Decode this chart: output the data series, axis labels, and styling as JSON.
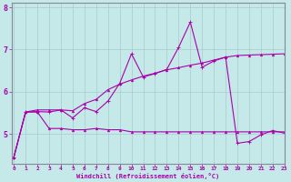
{
  "xlabel": "Windchill (Refroidissement éolien,°C)",
  "background_color": "#c5e8e8",
  "grid_color": "#a8cccc",
  "line_color": "#aa00aa",
  "spine_color": "#888899",
  "x_ticks": [
    0,
    1,
    2,
    3,
    4,
    5,
    6,
    7,
    8,
    9,
    10,
    11,
    12,
    13,
    14,
    15,
    16,
    17,
    18,
    19,
    20,
    21,
    22,
    23
  ],
  "ylim": [
    4.3,
    8.1
  ],
  "xlim": [
    -0.2,
    23
  ],
  "y_ticks": [
    5,
    6,
    7,
    8
  ],
  "series1_x": [
    0,
    1,
    2,
    3,
    4,
    5,
    6,
    7,
    8,
    9,
    10,
    11,
    12,
    13,
    14,
    15,
    16,
    17,
    18,
    19,
    20,
    21,
    22,
    23
  ],
  "series1_y": [
    4.45,
    5.52,
    5.52,
    5.13,
    5.13,
    5.1,
    5.1,
    5.13,
    5.1,
    5.1,
    5.05,
    5.05,
    5.05,
    5.05,
    5.05,
    5.05,
    5.05,
    5.05,
    5.05,
    5.05,
    5.05,
    5.05,
    5.05,
    5.05
  ],
  "series2_x": [
    0,
    1,
    2,
    3,
    4,
    5,
    6,
    7,
    8,
    9,
    10,
    11,
    12,
    13,
    14,
    15,
    16,
    17,
    18,
    19,
    20,
    21,
    22,
    23
  ],
  "series2_y": [
    4.45,
    5.52,
    5.57,
    5.57,
    5.57,
    5.55,
    5.72,
    5.82,
    6.05,
    6.18,
    6.28,
    6.37,
    6.44,
    6.52,
    6.57,
    6.63,
    6.68,
    6.75,
    6.82,
    6.86,
    6.87,
    6.88,
    6.89,
    6.9
  ],
  "series3_x": [
    0,
    1,
    2,
    3,
    4,
    5,
    6,
    7,
    8,
    9,
    10,
    11,
    12,
    13,
    14,
    15,
    16,
    17,
    18,
    19,
    20,
    21,
    22,
    23
  ],
  "series3_y": [
    4.45,
    5.52,
    5.53,
    5.52,
    5.57,
    5.38,
    5.62,
    5.53,
    5.78,
    6.2,
    6.9,
    6.35,
    6.43,
    6.53,
    7.05,
    7.65,
    6.58,
    6.73,
    6.82,
    4.78,
    4.82,
    4.98,
    5.08,
    5.02
  ]
}
